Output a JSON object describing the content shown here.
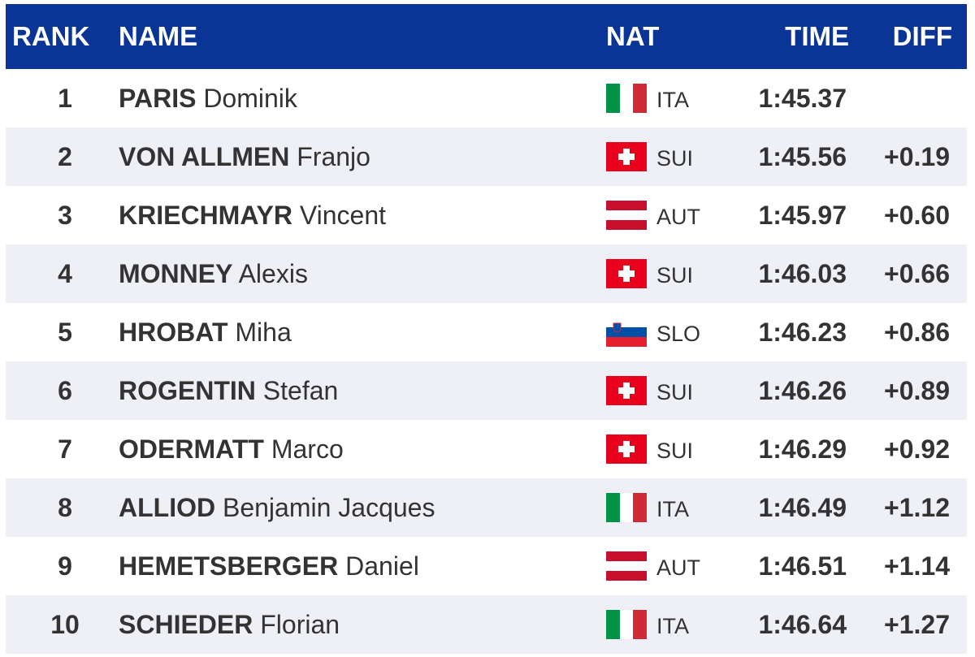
{
  "header": {
    "rank": "RANK",
    "name": "NAME",
    "nat": "NAT",
    "time": "TIME",
    "diff": "DIFF"
  },
  "rows": [
    {
      "rank": "1",
      "surname": "PARIS",
      "firstname": "Dominik",
      "nat": "ITA",
      "time": "1:45.37"
    },
    {
      "rank": "2",
      "surname": "VON ALLMEN",
      "firstname": "Franjo",
      "nat": "SUI",
      "time": "1:45.56",
      "diff": "+0.19"
    },
    {
      "rank": "3",
      "surname": "KRIECHMAYR",
      "firstname": "Vincent",
      "nat": "AUT",
      "time": "1:45.97",
      "diff": "+0.60"
    },
    {
      "rank": "4",
      "surname": "MONNEY",
      "firstname": "Alexis",
      "nat": "SUI",
      "time": "1:46.03",
      "diff": "+0.66"
    },
    {
      "rank": "5",
      "surname": "HROBAT",
      "firstname": "Miha",
      "nat": "SLO",
      "time": "1:46.23",
      "diff": "+0.86"
    },
    {
      "rank": "6",
      "surname": "ROGENTIN",
      "firstname": "Stefan",
      "nat": "SUI",
      "time": "1:46.26",
      "diff": "+0.89"
    },
    {
      "rank": "7",
      "surname": "ODERMATT",
      "firstname": "Marco",
      "nat": "SUI",
      "time": "1:46.29",
      "diff": "+0.92"
    },
    {
      "rank": "8",
      "surname": "ALLIOD",
      "firstname": "Benjamin Jacques",
      "nat": "ITA",
      "time": "1:46.49",
      "diff": "+1.12"
    },
    {
      "rank": "9",
      "surname": "HEMETSBERGER",
      "firstname": "Daniel",
      "nat": "AUT",
      "time": "1:46.51",
      "diff": "+1.14"
    },
    {
      "rank": "10",
      "surname": "SCHIEDER",
      "firstname": "Florian",
      "nat": "ITA",
      "time": "1:46.64",
      "diff": "+1.27"
    }
  ]
}
